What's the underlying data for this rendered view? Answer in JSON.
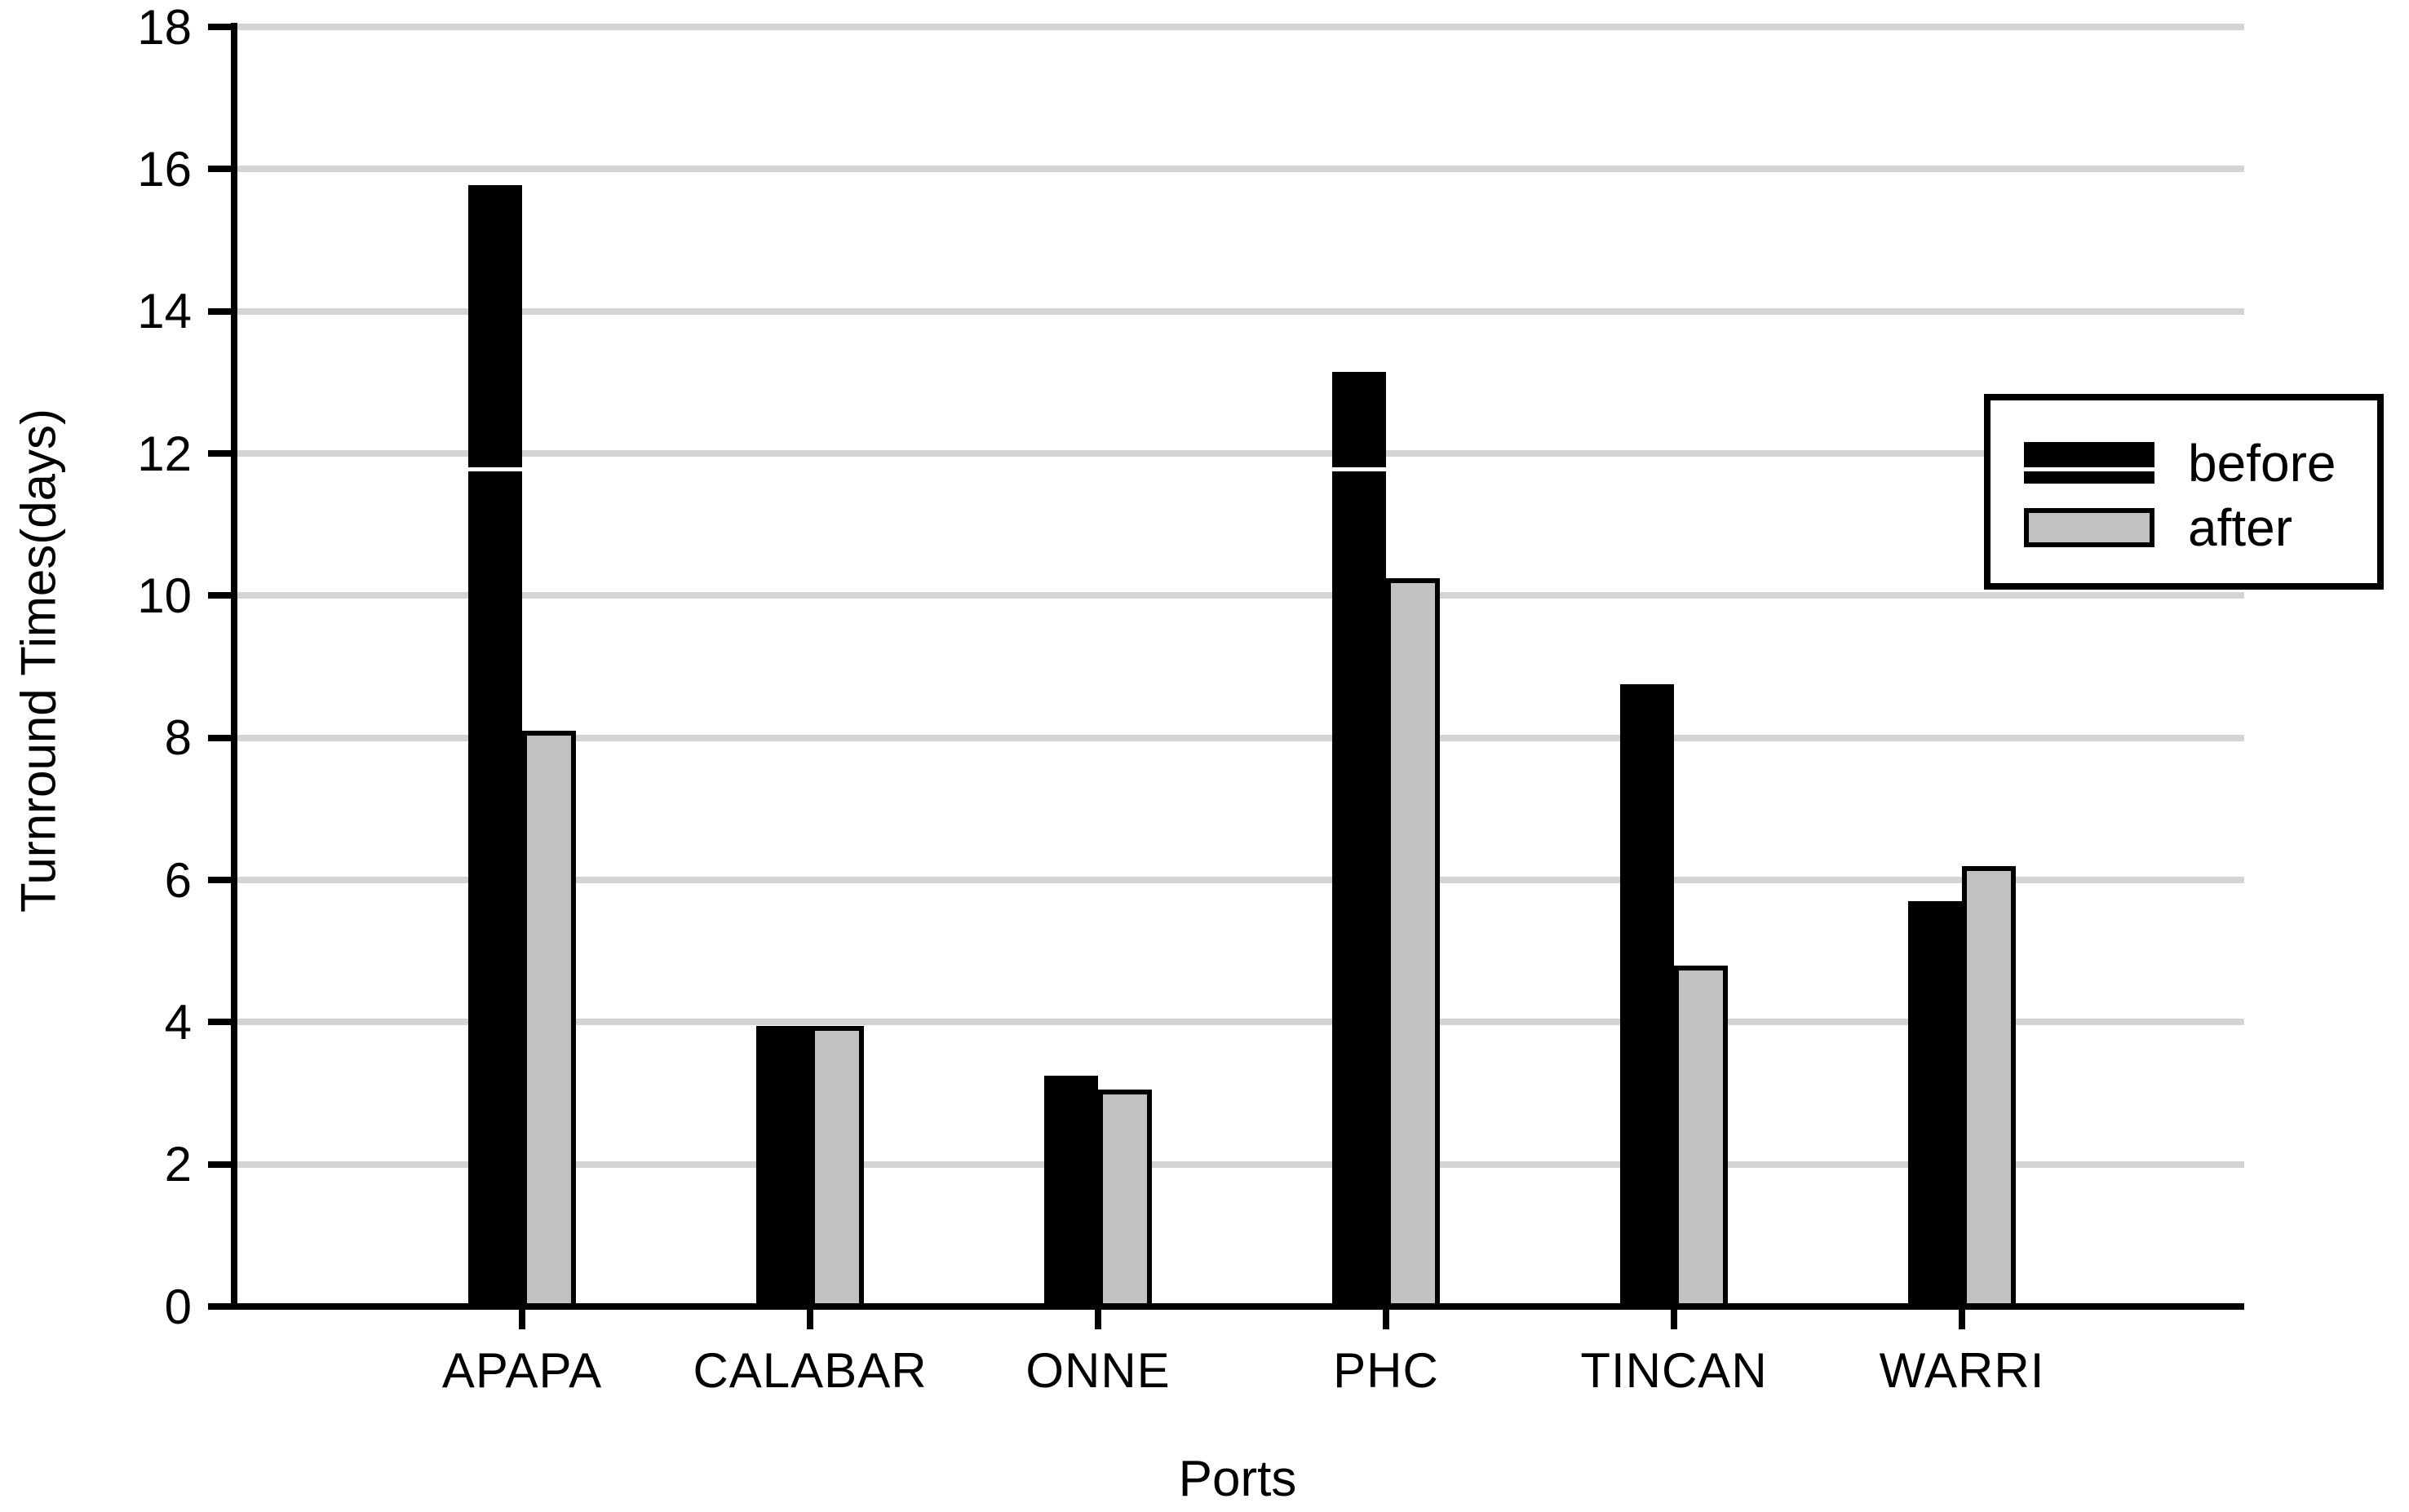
{
  "chart_data": {
    "type": "bar",
    "title": "",
    "xlabel": "Ports",
    "ylabel": "Turnround Times(days)",
    "categories": [
      "APAPA",
      "CALABAR",
      "ONNE",
      "PHC",
      "TINCAN",
      "WARRI"
    ],
    "series": [
      {
        "name": "before",
        "color": "#000000",
        "values": [
          15.78,
          3.95,
          3.25,
          13.15,
          8.75,
          5.7
        ]
      },
      {
        "name": "after",
        "color": "#c1c1c1",
        "values": [
          8.1,
          3.95,
          3.05,
          10.25,
          4.8,
          6.2
        ]
      }
    ],
    "ylim": [
      0,
      18
    ],
    "ytick_step": 2,
    "yticks": [
      0,
      2,
      4,
      6,
      8,
      10,
      12,
      14,
      16,
      18
    ],
    "grid": "horizontal",
    "gridline_color": "#d4d4d4",
    "legend_position": "upper-right",
    "legend": {
      "before_label": "before",
      "after_label": "after"
    }
  }
}
